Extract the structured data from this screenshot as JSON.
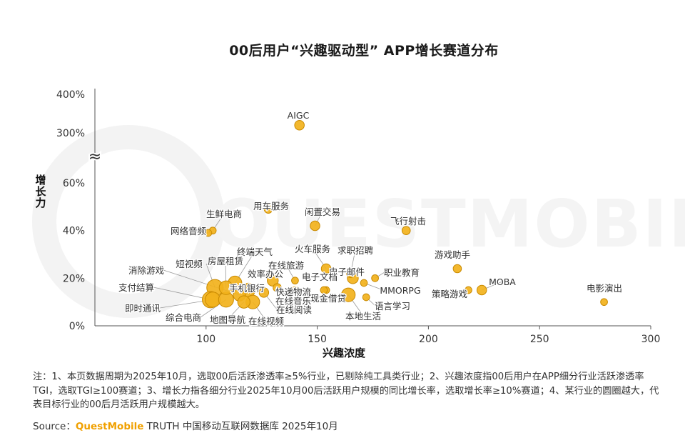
{
  "chart_data": {
    "type": "scatter",
    "title": "00后用户“兴趣驱动型” APP增长赛道分布",
    "xlabel": "兴趣浓度",
    "ylabel": "增长力",
    "xlim": [
      50,
      300
    ],
    "x_ticks": [
      "100",
      "150",
      "200",
      "250",
      "300"
    ],
    "y_ticks": [
      "0%",
      "20%",
      "40%",
      "60%",
      "300%",
      "400%"
    ],
    "y_break": "≈",
    "y_scale": "broken: 0%–60% linear, 300%–400% linear",
    "grid": false,
    "legend": "none",
    "bubble_color": "#f2b21c",
    "bubble_stroke": "#c98a00",
    "points": [
      {
        "label": "AIGC",
        "x": 142,
        "y": 320,
        "size": 5
      },
      {
        "label": "用车服务",
        "x": 128,
        "y": 49,
        "size": 4
      },
      {
        "label": "闲置交易",
        "x": 149,
        "y": 42,
        "size": 5
      },
      {
        "label": "飞行射击",
        "x": 190,
        "y": 40,
        "size": 4
      },
      {
        "label": "生鲜电商",
        "x": 103,
        "y": 40,
        "size": 3
      },
      {
        "label": "网络音频",
        "x": 101,
        "y": 39,
        "size": 3
      },
      {
        "label": "游戏助手",
        "x": 213,
        "y": 24,
        "size": 4
      },
      {
        "label": "MOBA",
        "x": 224,
        "y": 15,
        "size": 5
      },
      {
        "label": "策略游戏",
        "x": 218,
        "y": 15,
        "size": 3
      },
      {
        "label": "电影演出",
        "x": 279,
        "y": 10,
        "size": 3
      },
      {
        "label": "职业教育",
        "x": 176,
        "y": 20,
        "size": 3
      },
      {
        "label": "MMORPG",
        "x": 171,
        "y": 18,
        "size": 3
      },
      {
        "label": "语言学习",
        "x": 172,
        "y": 12,
        "size": 3
      },
      {
        "label": "求职招聘",
        "x": 165,
        "y": 22,
        "size": 4
      },
      {
        "label": "电子邮件",
        "x": 166,
        "y": 20,
        "size": 6
      },
      {
        "label": "火车服务",
        "x": 154,
        "y": 24,
        "size": 5
      },
      {
        "label": "电子文档",
        "x": 154,
        "y": 15,
        "size": 3
      },
      {
        "label": "现金借贷",
        "x": 153,
        "y": 15,
        "size": 3
      },
      {
        "label": "本地生活",
        "x": 164,
        "y": 13,
        "size": 8
      },
      {
        "label": "在线旅游",
        "x": 140,
        "y": 19,
        "size": 3
      },
      {
        "label": "快递物流",
        "x": 140,
        "y": 15,
        "size": 3
      },
      {
        "label": "在线音乐",
        "x": 132,
        "y": 16,
        "size": 4
      },
      {
        "label": "在线阅读",
        "x": 126,
        "y": 14,
        "size": 5
      },
      {
        "label": "效率办公",
        "x": 130,
        "y": 19,
        "size": 6
      },
      {
        "label": "终端天气",
        "x": 113,
        "y": 18,
        "size": 8
      },
      {
        "label": "手机银行",
        "x": 119,
        "y": 15,
        "size": 8
      },
      {
        "label": "房屋租赁",
        "x": 109,
        "y": 16,
        "size": 8
      },
      {
        "label": "短视频",
        "x": 104,
        "y": 16,
        "size": 10
      },
      {
        "label": "消除游戏",
        "x": 115,
        "y": 13,
        "size": 7
      },
      {
        "label": "支付结算",
        "x": 102,
        "y": 11,
        "size": 10
      },
      {
        "label": "即时通讯",
        "x": 103,
        "y": 11,
        "size": 9
      },
      {
        "label": "综合电商",
        "x": 109,
        "y": 11,
        "size": 9
      },
      {
        "label": "地图导航",
        "x": 117,
        "y": 10,
        "size": 7
      },
      {
        "label": "在线视频",
        "x": 121,
        "y": 10,
        "size": 8
      }
    ]
  },
  "watermark": "QUESTMOBILE",
  "notes": "注：1、本页数据周期为2025年10月，选取00后活跃渗透率≥5%行业，已剔除纯工具类行业；2、兴趣浓度指00后用户在APP细分行业活跃渗透率TGI，选取TGI≥100赛道；3、增长力指各细分行业2025年10月00后活跃用户规模的同比增长率，选取增长率≥10%赛道；4、某行业的圆圈越大，代表目标行业的00后月活跃用户规模越大。",
  "source": {
    "prefix": "Source：",
    "brand": "QuestMobile",
    "suffix": " TRUTH 中国移动互联网数据库 2025年10月"
  }
}
